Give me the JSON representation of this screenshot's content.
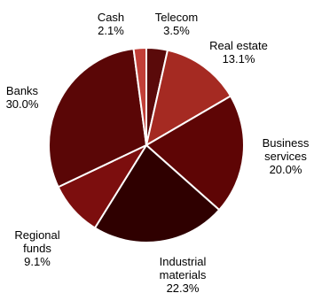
{
  "chart_data": {
    "type": "pie",
    "title": "",
    "start": "12 o'clock",
    "direction": "clockwise",
    "slices": [
      {
        "label": "Telecom",
        "value": 3.5,
        "value_label": "3.5%",
        "color": "#5a0a0a"
      },
      {
        "label": "Real estate",
        "value": 13.1,
        "value_label": "13.1%",
        "color": "#a52a22"
      },
      {
        "label": "Business services",
        "label_lines": [
          "Business",
          "services"
        ],
        "value": 20.0,
        "value_label": "20.0%",
        "color": "#5e0505"
      },
      {
        "label": "Industrial materials",
        "label_lines": [
          "Industrial",
          "materials"
        ],
        "value": 22.3,
        "value_label": "22.3%",
        "color": "#2f0000"
      },
      {
        "label": "Regional funds",
        "label_lines": [
          "Regional",
          "funds"
        ],
        "value": 9.1,
        "value_label": "9.1%",
        "color": "#7c0e0e"
      },
      {
        "label": "Banks",
        "value": 30.0,
        "value_label": "30.0%",
        "color": "#5a0606"
      },
      {
        "label": "Cash",
        "value": 2.1,
        "value_label": "2.1%",
        "color": "#c23f38"
      }
    ]
  }
}
